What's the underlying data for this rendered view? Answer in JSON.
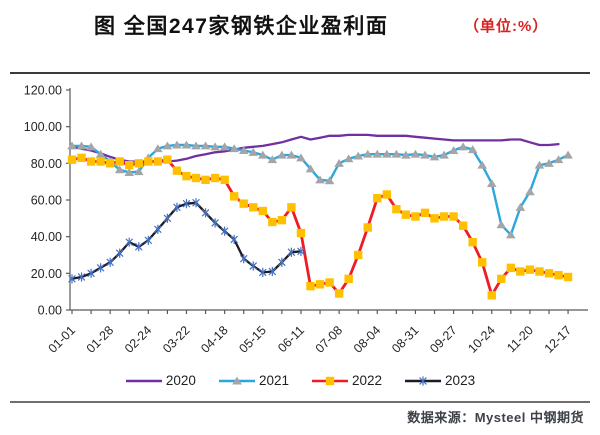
{
  "title": {
    "text": "图 全国247家钢铁企业盈利面",
    "unit": "（单位:%）"
  },
  "source": "数据来源：Mysteel 中钢期货",
  "colors": {
    "title_text": "#111111",
    "unit_text": "#d92121",
    "axis": "#595959",
    "tick_label": "#262626",
    "series_2020": "#7030A0",
    "series_2021": "#2BA7DD",
    "series_2021_marker": "#A3A5A8",
    "series_2022": "#EE1C24",
    "series_2022_marker": "#FFC000",
    "series_2023": "#1B1C28",
    "series_2023_marker": "#4472C4"
  },
  "chart_data": {
    "type": "line",
    "title": "全国247家钢铁企业盈利面",
    "unit": "%",
    "grid": false,
    "legend_position": "bottom",
    "ylim": [
      0,
      120
    ],
    "y_tick_labels": [
      "0.00",
      "20.00",
      "40.00",
      "60.00",
      "80.00",
      "100.00",
      "120.00"
    ],
    "x_tick_labels": [
      "01-01",
      "01-28",
      "02-24",
      "03-22",
      "04-18",
      "05-15",
      "06-11",
      "07-08",
      "08-04",
      "08-31",
      "09-27",
      "10-24",
      "11-20",
      "12-17"
    ],
    "x_tick_label_indices": [
      0,
      4,
      8,
      12,
      16,
      20,
      24,
      28,
      32,
      36,
      40,
      44,
      48,
      52
    ],
    "n_points": 53,
    "series": [
      {
        "name": "2020",
        "color": "#7030A0",
        "marker": "none",
        "marker_color": null,
        "line_width": 2.3,
        "values": [
          89,
          88,
          87,
          85.5,
          83.5,
          82,
          81,
          81,
          81,
          81,
          81,
          81.5,
          82.5,
          84,
          85,
          86,
          86.5,
          87.5,
          88.5,
          89,
          89.5,
          90.5,
          91.5,
          93,
          94.5,
          93,
          94,
          95,
          95,
          95.5,
          95.5,
          95.5,
          95,
          95,
          95,
          95,
          94.5,
          94,
          93.5,
          93,
          92.5,
          92.5,
          92.5,
          92.5,
          92.5,
          92.5,
          93,
          93,
          91.5,
          90,
          90,
          90.5,
          null
        ]
      },
      {
        "name": "2021",
        "color": "#2BA7DD",
        "marker": "triangle",
        "marker_color": "#A3A5A8",
        "line_width": 2.4,
        "values": [
          89.5,
          89.5,
          89,
          85,
          81,
          76.5,
          75,
          75.5,
          83,
          88,
          89.5,
          90,
          90,
          89.5,
          89.5,
          89,
          89,
          88,
          87,
          86,
          84.5,
          82,
          84.5,
          84.5,
          83,
          77,
          71,
          70.5,
          80,
          82.5,
          84,
          85,
          85,
          85,
          85,
          84.5,
          85,
          84.5,
          83.5,
          84.5,
          87,
          89,
          87.5,
          79,
          69,
          46.5,
          41,
          56,
          64.5,
          79,
          80,
          82,
          84.5
        ]
      },
      {
        "name": "2022",
        "color": "#EE1C24",
        "marker": "square",
        "marker_color": "#FFC000",
        "line_width": 2.8,
        "values": [
          82,
          83,
          81,
          81,
          80,
          81,
          79,
          80,
          81,
          81,
          82,
          76,
          73,
          72,
          71,
          72,
          71,
          62,
          58,
          56,
          54,
          48,
          49,
          56,
          42,
          13,
          14,
          15,
          9,
          17,
          30,
          45,
          61,
          63,
          55,
          52,
          51,
          53,
          50,
          51,
          51,
          46,
          37,
          26,
          8,
          17,
          23,
          21,
          22,
          21,
          20,
          19,
          18
        ]
      },
      {
        "name": "2023",
        "color": "#1B1C28",
        "marker": "star",
        "marker_color": "#4472C4",
        "line_width": 2.3,
        "values": [
          17,
          18,
          20,
          23,
          26,
          31,
          37,
          34.5,
          38,
          44,
          50,
          56,
          58,
          58.5,
          53,
          47.5,
          43,
          38.5,
          28,
          24,
          20.5,
          21,
          26,
          31.5,
          32,
          null,
          null,
          null,
          null,
          null,
          null,
          null,
          null,
          null,
          null,
          null,
          null,
          null,
          null,
          null,
          null,
          null,
          null,
          null,
          null,
          null,
          null,
          null,
          null,
          null,
          null,
          null,
          null
        ]
      }
    ]
  }
}
